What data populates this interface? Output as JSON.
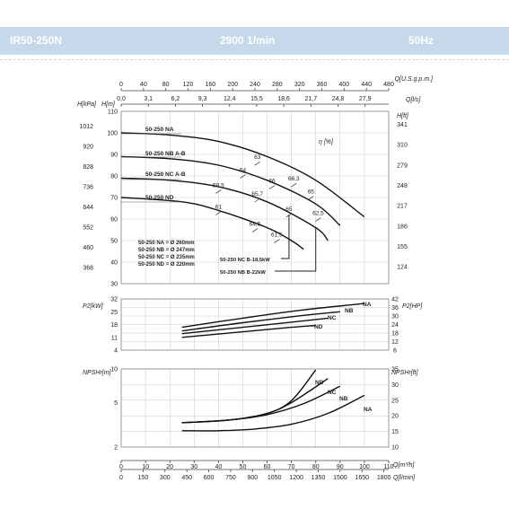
{
  "header": {
    "model": "IR50-250N",
    "speed": "2900 1/min",
    "frequency": "50Hz"
  },
  "colors": {
    "header_bg": "#c5d9ea",
    "header_text": "#ffffff",
    "curve": "#111111",
    "grid": "#c8c8c8"
  },
  "axes": {
    "q_usgpm": {
      "label": "Q[U.S.g.p.m.]",
      "ticks": [
        "0",
        "40",
        "80",
        "120",
        "160",
        "200",
        "240",
        "280",
        "320",
        "360",
        "400",
        "440",
        "480"
      ]
    },
    "q_ls": {
      "label": "Q[l/s]",
      "ticks": [
        "0,0",
        "3,1",
        "6,2",
        "9,3",
        "12,4",
        "15,5",
        "18,6",
        "21,7",
        "24,8",
        "27,9"
      ]
    },
    "q_m3h": {
      "label": "Q[m³/h]",
      "ticks": [
        "0",
        "10",
        "20",
        "30",
        "40",
        "50",
        "60",
        "70",
        "80",
        "90",
        "100",
        "110"
      ]
    },
    "q_lmin": {
      "label": "Q[l/min]",
      "ticks": [
        "0",
        "150",
        "300",
        "450",
        "600",
        "750",
        "900",
        "1050",
        "1200",
        "1350",
        "1500",
        "1650",
        "1800"
      ]
    },
    "head_kpa": {
      "label": "H[kPa]",
      "ticks": [
        "1012",
        "920",
        "828",
        "736",
        "644",
        "552",
        "460",
        "368"
      ]
    },
    "head_m": {
      "label": "H[m]",
      "ticks": [
        "110",
        "100",
        "90",
        "80",
        "70",
        "60",
        "50",
        "40",
        "30"
      ]
    },
    "head_ft": {
      "label": "H[ft]",
      "ticks": [
        "341",
        "310",
        "279",
        "248",
        "217",
        "186",
        "155",
        "124"
      ]
    },
    "p2_kw": {
      "label": "P2[kW]",
      "ticks": [
        "32",
        "25",
        "18",
        "11",
        "4"
      ]
    },
    "p2_hp": {
      "label": "P2[HP]",
      "ticks": [
        "42",
        "36",
        "30",
        "24",
        "18",
        "12",
        "6"
      ]
    },
    "npsh_m": {
      "label": "NPSHr[m]",
      "ticks": [
        "10",
        "5",
        "2"
      ]
    },
    "npsh_ft": {
      "label": "NPSHr[ft]",
      "ticks": [
        "35",
        "30",
        "25",
        "20",
        "15",
        "10"
      ]
    }
  },
  "labels": {
    "eta": "η [%]",
    "na": "50-250 NA",
    "nb": "50-250 NB A-B",
    "nc": "50-250 NC A-B",
    "nd": "50-250 ND",
    "d1": "50-250 NA = Ø 260mm",
    "d2": "50-250 NB = Ø 247mm",
    "d3": "50-250 NC = Ø 235mm",
    "d4": "50-250 ND = Ø 220mm",
    "limit_nc": "50-250 NC B-18,5kW",
    "limit_nb": "50-250 NB B-22kW"
  },
  "chart_data": [
    {
      "type": "line",
      "title": "",
      "xlabel": "Q[m³/h]",
      "ylabel": "H[m]",
      "xlim": [
        0,
        110
      ],
      "ylim": [
        30,
        110
      ],
      "series": [
        {
          "name": "NA",
          "x": [
            0,
            20,
            40,
            60,
            80,
            100
          ],
          "y": [
            100,
            99,
            96,
            89,
            78,
            61
          ]
        },
        {
          "name": "NB",
          "x": [
            0,
            20,
            40,
            60,
            80,
            90
          ],
          "y": [
            89,
            88,
            85,
            78,
            67,
            57
          ]
        },
        {
          "name": "NC",
          "x": [
            0,
            20,
            40,
            60,
            80,
            85
          ],
          "y": [
            79,
            78,
            75,
            68,
            56,
            50
          ]
        },
        {
          "name": "ND",
          "x": [
            0,
            25,
            40,
            60,
            70,
            75
          ],
          "y": [
            70,
            68,
            64,
            56,
            50,
            46
          ]
        }
      ],
      "efficiency_labels": [
        {
          "text": "63",
          "x": 56,
          "y": 87
        },
        {
          "text": "66,3",
          "x": 71,
          "y": 77
        },
        {
          "text": "65",
          "x": 78,
          "y": 71
        },
        {
          "text": "64",
          "x": 50,
          "y": 81
        },
        {
          "text": "66",
          "x": 62,
          "y": 76
        },
        {
          "text": "62,5",
          "x": 81,
          "y": 61
        },
        {
          "text": "59,5",
          "x": 40,
          "y": 74
        },
        {
          "text": "65,7",
          "x": 56,
          "y": 70
        },
        {
          "text": "61",
          "x": 40,
          "y": 64
        },
        {
          "text": "65",
          "x": 69,
          "y": 63
        },
        {
          "text": "64,5",
          "x": 55,
          "y": 56
        },
        {
          "text": "61,5",
          "x": 64,
          "y": 51
        }
      ]
    },
    {
      "type": "line",
      "title": "",
      "xlabel": "Q[m³/h]",
      "ylabel": "P2[kW]",
      "xlim": [
        0,
        110
      ],
      "ylim": [
        4,
        32
      ],
      "series": [
        {
          "name": "NA",
          "x": [
            25,
            50,
            75,
            100
          ],
          "y": [
            16.5,
            21.5,
            26,
            29.5
          ]
        },
        {
          "name": "NB",
          "x": [
            25,
            50,
            75,
            90
          ],
          "y": [
            14.5,
            19,
            23,
            25
          ]
        },
        {
          "name": "NC",
          "x": [
            25,
            50,
            75,
            85
          ],
          "y": [
            13,
            16.5,
            20,
            21.5
          ]
        },
        {
          "name": "ND",
          "x": [
            25,
            50,
            70,
            80
          ],
          "y": [
            11,
            14,
            16.5,
            17.5
          ]
        }
      ]
    },
    {
      "type": "line",
      "title": "",
      "xlabel": "Q[m³/h]",
      "ylabel": "NPSHr[m]",
      "yscale": "log",
      "xlim": [
        0,
        110
      ],
      "ylim": [
        2,
        10
      ],
      "series": [
        {
          "name": "NA",
          "x": [
            25,
            40,
            55,
            70,
            85,
            100
          ],
          "y": [
            2.8,
            2.8,
            2.9,
            3.2,
            4.0,
            5.8
          ]
        },
        {
          "name": "NB",
          "x": [
            25,
            45,
            60,
            75,
            90
          ],
          "y": [
            3.3,
            3.5,
            3.9,
            4.9,
            7.0
          ]
        },
        {
          "name": "NC",
          "x": [
            25,
            45,
            60,
            70,
            85
          ],
          "y": [
            3.3,
            3.5,
            4.0,
            5.0,
            8.2
          ]
        },
        {
          "name": "ND",
          "x": [
            25,
            45,
            60,
            70,
            80
          ],
          "y": [
            3.3,
            3.5,
            4.0,
            5.2,
            9.8
          ]
        }
      ]
    }
  ]
}
